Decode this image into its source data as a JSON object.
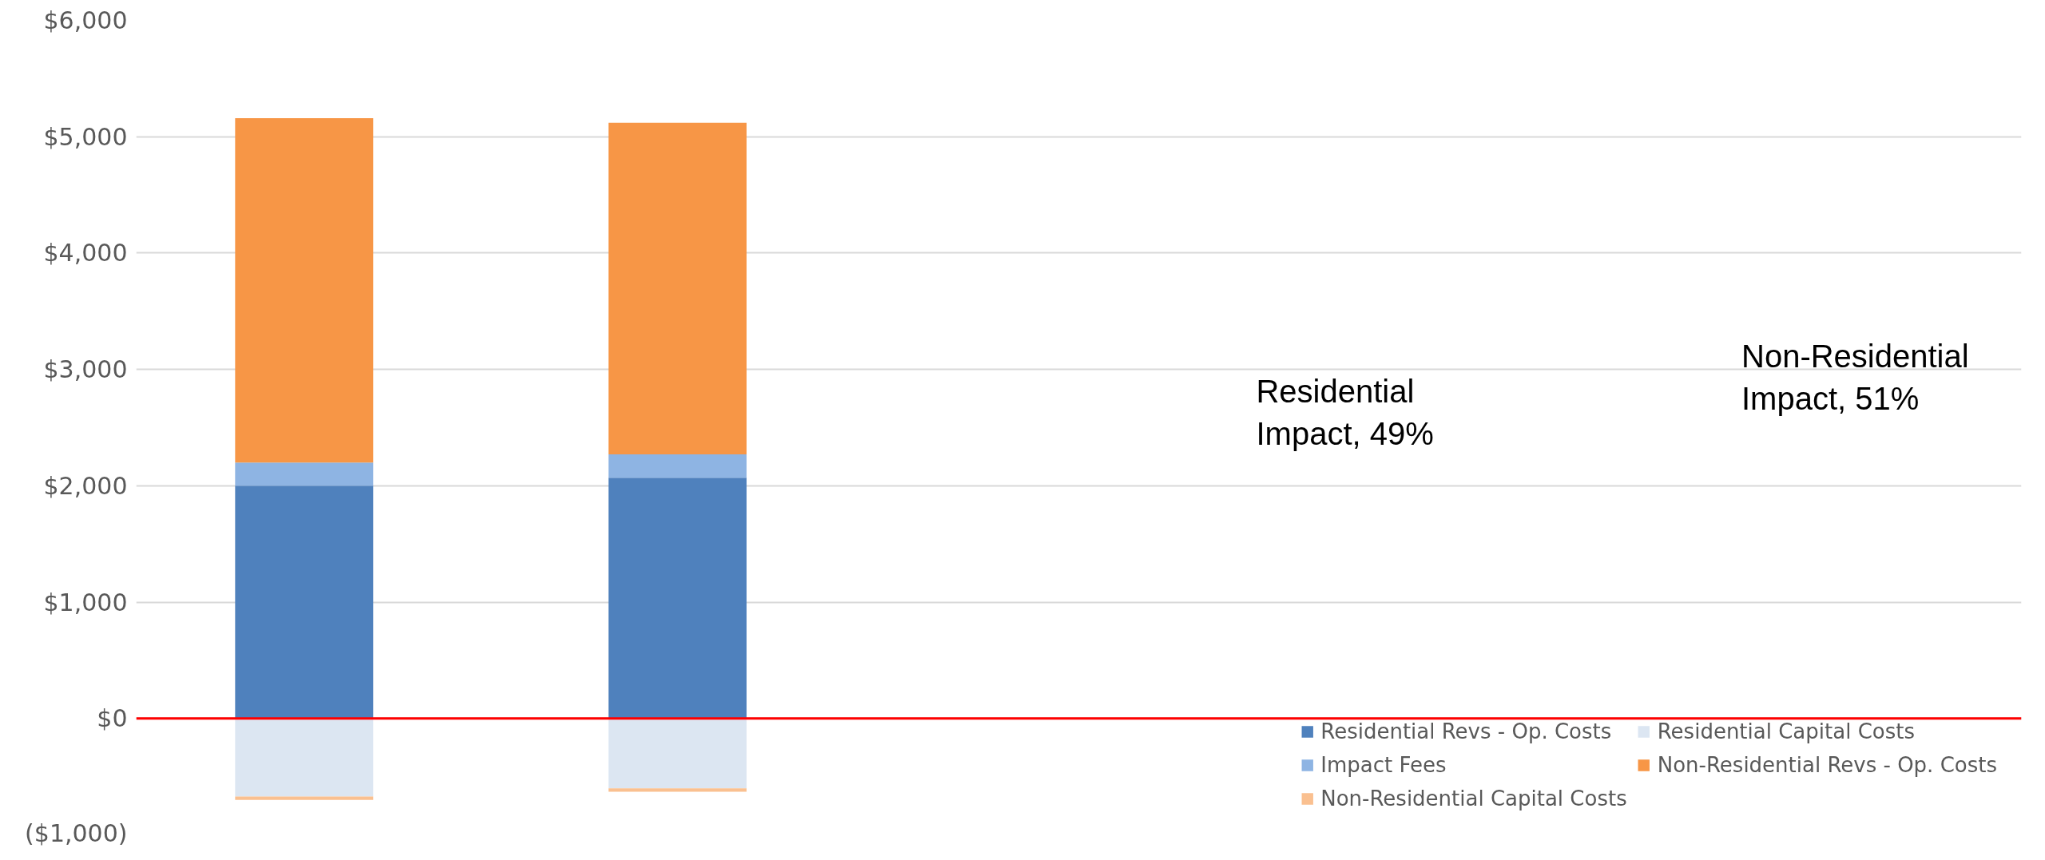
{
  "chart_data": {
    "type": "bar",
    "stacked": true,
    "categories": [
      null,
      null
    ],
    "series": [
      {
        "name": "Residential Revs - Op. Costs",
        "color": "#4f81bd",
        "values": [
          2000,
          2070
        ]
      },
      {
        "name": "Impact Fees",
        "color": "#8eb4e3",
        "values": [
          200,
          200
        ]
      },
      {
        "name": "Non-Residential Revs - Op. Costs",
        "color": "#f79646",
        "values": [
          2960,
          2850
        ]
      },
      {
        "name": "Residential Capital Costs",
        "color": "#dce6f2",
        "values": [
          -670,
          -600
        ]
      },
      {
        "name": "Non-Residential Capital Costs",
        "color": "#fac090",
        "values": [
          -30,
          -30
        ]
      }
    ],
    "ylim": [
      -1000,
      6000
    ],
    "yticks": [
      {
        "value": -1000,
        "label": "($1,000)"
      },
      {
        "value": 0,
        "label": "$0"
      },
      {
        "value": 1000,
        "label": "$1,000"
      },
      {
        "value": 2000,
        "label": "$2,000"
      },
      {
        "value": 3000,
        "label": "$3,000"
      },
      {
        "value": 4000,
        "label": "$4,000"
      },
      {
        "value": 5000,
        "label": "$5,000"
      },
      {
        "value": 6000,
        "label": "$6,000"
      }
    ],
    "ref_lines": [
      {
        "axis": "y",
        "value": 0,
        "color": "#ff0000"
      }
    ],
    "annotations": [
      "Residential\nImpact, 49%",
      "Non-Residential\nImpact, 51%"
    ],
    "grid": "y",
    "legend": "bottom right",
    "tick_labels": "y"
  }
}
